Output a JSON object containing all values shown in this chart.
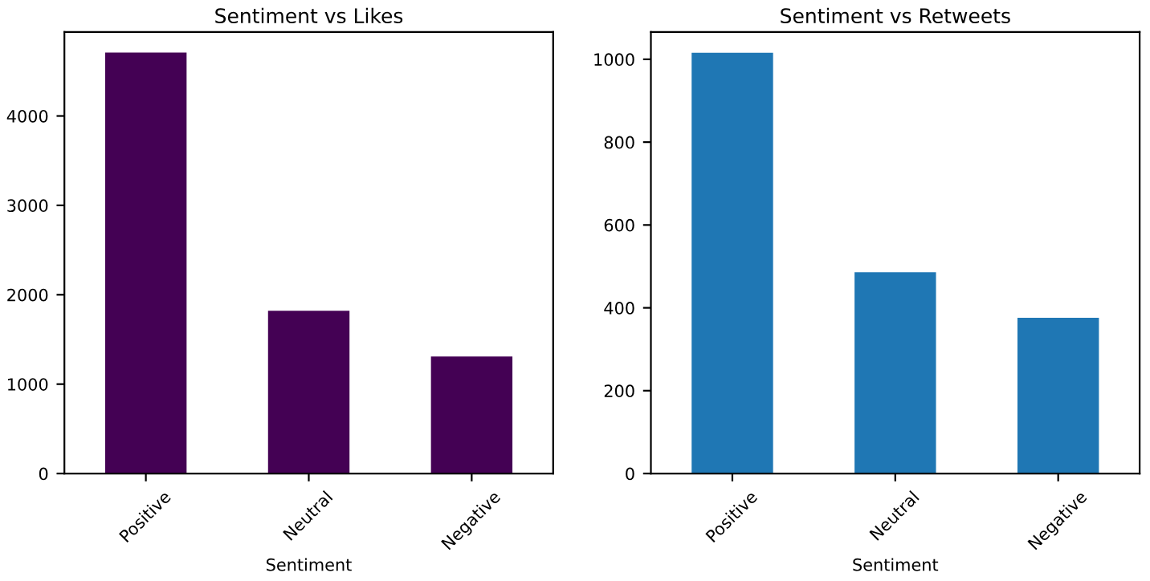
{
  "chart_data": [
    {
      "type": "bar",
      "title": "Sentiment vs Likes",
      "xlabel": "Sentiment",
      "categories": [
        "Positive",
        "Neutral",
        "Negative"
      ],
      "values": [
        4710,
        1820,
        1310
      ],
      "color": "#440154",
      "ylim": [
        0,
        4940
      ],
      "yticks": [
        0,
        1000,
        2000,
        3000,
        4000
      ],
      "grid": false
    },
    {
      "type": "bar",
      "title": "Sentiment vs Retweets",
      "xlabel": "Sentiment",
      "categories": [
        "Positive",
        "Neutral",
        "Negative"
      ],
      "values": [
        1016,
        486,
        376
      ],
      "color": "#1f77b4",
      "ylim": [
        0,
        1066
      ],
      "yticks": [
        0,
        200,
        400,
        600,
        800,
        1000
      ],
      "grid": false
    }
  ]
}
